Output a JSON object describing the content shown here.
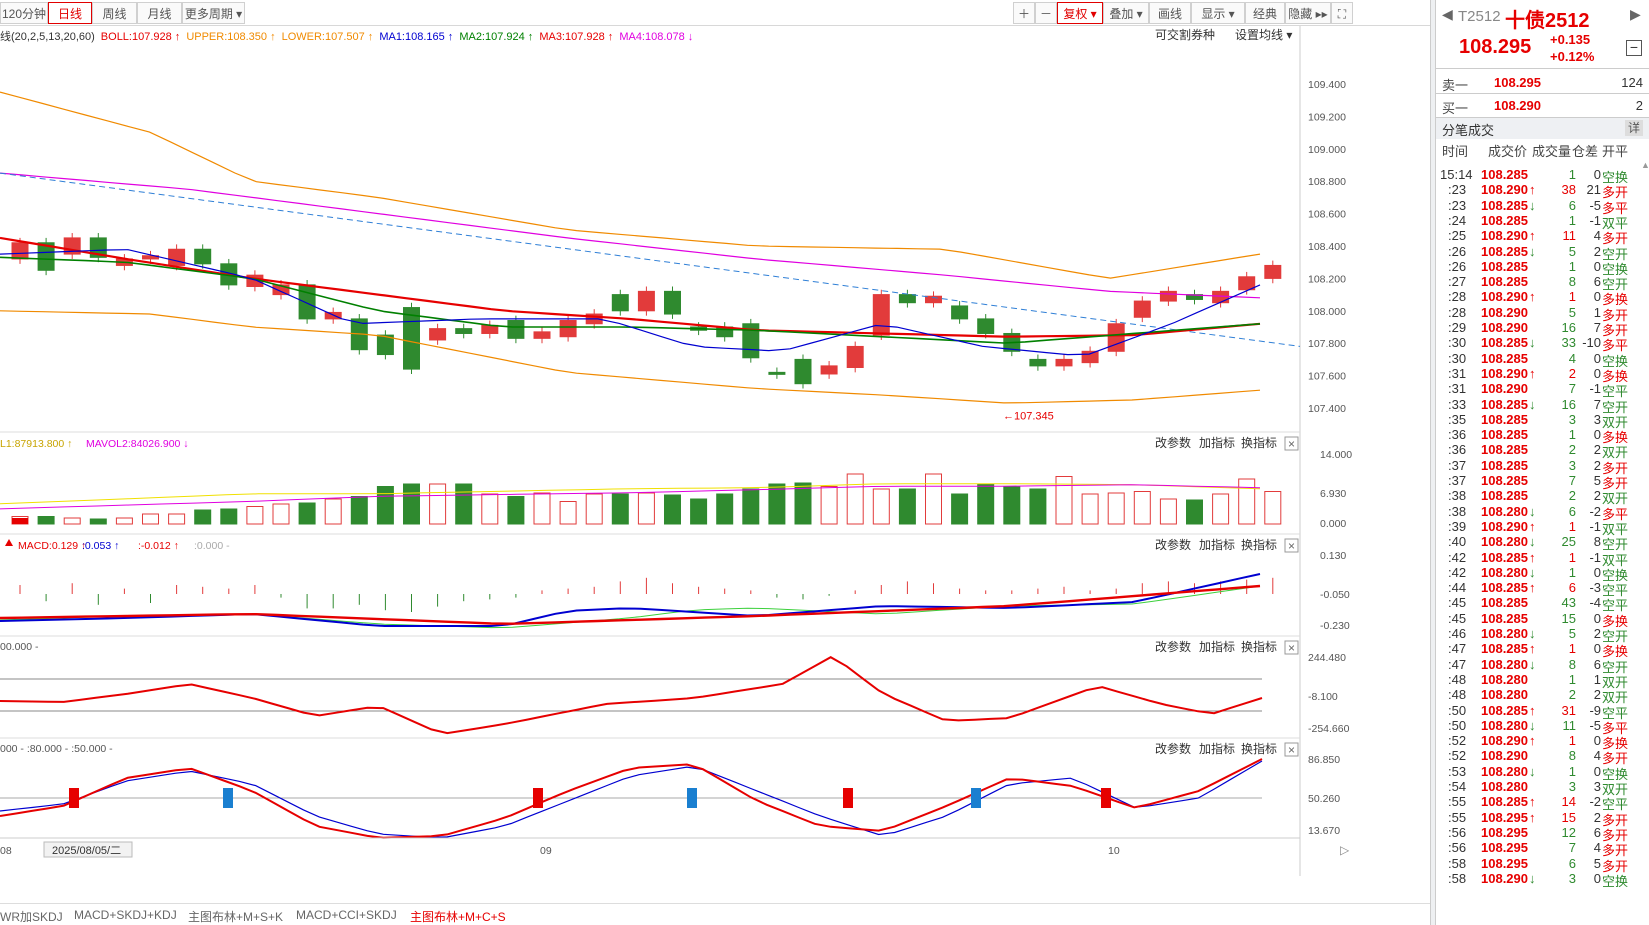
{
  "toolbar": {
    "left": [
      {
        "id": "p120",
        "label": "120分钟"
      },
      {
        "id": "day",
        "label": "日线"
      },
      {
        "id": "week",
        "label": "周线"
      },
      {
        "id": "month",
        "label": "月线"
      },
      {
        "id": "more",
        "label": "更多周期 ▾"
      }
    ],
    "right": [
      "＋",
      "－",
      "复权 ▾",
      "叠加 ▾",
      "画线",
      "显示 ▾",
      "经典",
      "隐藏 ▸▸",
      "⛶"
    ]
  },
  "legend": {
    "prefix": "线(20,2,5,13,20,60)",
    "items": [
      {
        "text": "BOLL:107.928",
        "arrow": "↑",
        "color": "#e60000"
      },
      {
        "text": "UPPER:108.350",
        "arrow": "↑",
        "color": "#f08a00"
      },
      {
        "text": "LOWER:107.507",
        "arrow": "↑",
        "color": "#f08a00"
      },
      {
        "text": "MA1:108.165",
        "arrow": "↑",
        "color": "#0000d0"
      },
      {
        "text": "MA2:107.924",
        "arrow": "↑",
        "color": "#008000"
      },
      {
        "text": "MA3:107.928",
        "arrow": "↑",
        "color": "#e60000"
      },
      {
        "text": "MA4:108.078",
        "arrow": "↓",
        "color": "#e000e0"
      }
    ],
    "link1": "可交割券种",
    "link2": "设置均线 ▾"
  },
  "price_axis": [
    "109.400",
    "109.200",
    "109.000",
    "108.800",
    "108.600",
    "108.400",
    "108.200",
    "108.000",
    "107.800",
    "107.600",
    "107.400"
  ],
  "min_label": "←107.345",
  "vol": {
    "legend1": "L1:87913.800",
    "legend1_arrow": "↑",
    "legend2": "MAVOL2:84026.900",
    "legend2_arrow": "↓",
    "axis": [
      "14.000",
      "6.930",
      "0.000"
    ]
  },
  "macd": {
    "legend": [
      {
        "text": "MACD:0.129",
        "arrow": "↑",
        "color": "#e60000"
      },
      {
        "text": ":0.053",
        "arrow": "↑",
        "color": "#0000d0"
      },
      {
        "text": ":-0.012",
        "arrow": "↑",
        "color": "#e60000"
      },
      {
        "text": ":0.000 -",
        "arrow": "",
        "color": "#aaaaaa"
      }
    ],
    "axis": [
      "0.130",
      "-0.050",
      "-0.230"
    ]
  },
  "cci": {
    "legend": "00.000 -",
    "axis": [
      "244.480",
      "-8.100",
      "-254.660"
    ]
  },
  "kdj": {
    "legend": "000 - :80.000 - :50.000 -",
    "axis": [
      "86.850",
      "50.260",
      "13.670"
    ]
  },
  "panel_buttons": [
    "改参数",
    "加指标",
    "换指标"
  ],
  "date_labels": {
    "left": "08",
    "box": "2025/08/05/二",
    "m09": "09",
    "m10": "10"
  },
  "bottom_tabs": [
    {
      "label": "WR加SKDJ",
      "active": false
    },
    {
      "label": "MACD+SKDJ+KDJ",
      "active": false
    },
    {
      "label": "主图布林+M+S+K",
      "active": false
    },
    {
      "label": "MACD+CCI+SKDJ",
      "active": false
    },
    {
      "label": "主图布林+M+C+S",
      "active": true
    }
  ],
  "quote": {
    "code": "T2512",
    "name": "十债2512",
    "price": "108.295",
    "change": "+0.135",
    "pct": "+0.12%",
    "ask_label": "卖一",
    "ask_price": "108.295",
    "ask_vol": "124",
    "bid_label": "买一",
    "bid_price": "108.290",
    "bid_vol": "2",
    "ticks_title": "分笔成交",
    "detail": "详",
    "headers": [
      "时间",
      "成交价",
      "成交量",
      "仓差",
      "开平"
    ]
  },
  "ticks": [
    [
      "15:14",
      "108.285",
      "",
      "1",
      "0",
      "空换"
    ],
    [
      "23",
      "108.290",
      "↑",
      "38",
      "21",
      "多开"
    ],
    [
      "23",
      "108.285",
      "↓",
      "6",
      "-5",
      "多平"
    ],
    [
      "24",
      "108.285",
      "",
      "1",
      "-1",
      "双平"
    ],
    [
      "25",
      "108.290",
      "↑",
      "11",
      "4",
      "多开"
    ],
    [
      "26",
      "108.285",
      "↓",
      "5",
      "2",
      "空开"
    ],
    [
      "26",
      "108.285",
      "",
      "1",
      "0",
      "空换"
    ],
    [
      "27",
      "108.285",
      "",
      "8",
      "6",
      "空开"
    ],
    [
      "28",
      "108.290",
      "↑",
      "1",
      "0",
      "多换"
    ],
    [
      "28",
      "108.290",
      "",
      "5",
      "1",
      "多开"
    ],
    [
      "29",
      "108.290",
      "",
      "16",
      "7",
      "多开"
    ],
    [
      "30",
      "108.285",
      "↓",
      "33",
      "-10",
      "多平"
    ],
    [
      "30",
      "108.285",
      "",
      "4",
      "0",
      "空换"
    ],
    [
      "31",
      "108.290",
      "↑",
      "2",
      "0",
      "多换"
    ],
    [
      "31",
      "108.290",
      "",
      "7",
      "-1",
      "空平"
    ],
    [
      "33",
      "108.285",
      "↓",
      "16",
      "7",
      "空开"
    ],
    [
      "35",
      "108.285",
      "",
      "3",
      "3",
      "双开"
    ],
    [
      "36",
      "108.285",
      "",
      "1",
      "0",
      "多换"
    ],
    [
      "36",
      "108.285",
      "",
      "2",
      "2",
      "双开"
    ],
    [
      "37",
      "108.285",
      "",
      "3",
      "2",
      "多开"
    ],
    [
      "37",
      "108.285",
      "",
      "7",
      "5",
      "多开"
    ],
    [
      "38",
      "108.285",
      "",
      "2",
      "2",
      "双开"
    ],
    [
      "38",
      "108.280",
      "↓",
      "6",
      "-2",
      "多平"
    ],
    [
      "39",
      "108.290",
      "↑",
      "1",
      "-1",
      "双平"
    ],
    [
      "40",
      "108.280",
      "↓",
      "25",
      "8",
      "空开"
    ],
    [
      "42",
      "108.285",
      "↑",
      "1",
      "-1",
      "双平"
    ],
    [
      "42",
      "108.280",
      "↓",
      "1",
      "0",
      "空换"
    ],
    [
      "44",
      "108.285",
      "↑",
      "6",
      "-3",
      "空平"
    ],
    [
      "45",
      "108.285",
      "",
      "43",
      "-4",
      "空平"
    ],
    [
      "45",
      "108.285",
      "",
      "15",
      "0",
      "多换"
    ],
    [
      "46",
      "108.280",
      "↓",
      "5",
      "2",
      "空开"
    ],
    [
      "47",
      "108.285",
      "↑",
      "1",
      "0",
      "多换"
    ],
    [
      "47",
      "108.280",
      "↓",
      "8",
      "6",
      "空开"
    ],
    [
      "48",
      "108.280",
      "",
      "1",
      "1",
      "双开"
    ],
    [
      "48",
      "108.280",
      "",
      "2",
      "2",
      "双开"
    ],
    [
      "50",
      "108.285",
      "↑",
      "31",
      "-9",
      "空平"
    ],
    [
      "50",
      "108.280",
      "↓",
      "11",
      "-5",
      "多平"
    ],
    [
      "52",
      "108.290",
      "↑",
      "1",
      "0",
      "多换"
    ],
    [
      "52",
      "108.290",
      "",
      "8",
      "4",
      "多开"
    ],
    [
      "53",
      "108.280",
      "↓",
      "1",
      "0",
      "空换"
    ],
    [
      "54",
      "108.280",
      "",
      "3",
      "3",
      "双开"
    ],
    [
      "55",
      "108.285",
      "↑",
      "14",
      "-2",
      "空平"
    ],
    [
      "55",
      "108.295",
      "↑",
      "15",
      "2",
      "多开"
    ],
    [
      "56",
      "108.295",
      "",
      "12",
      "6",
      "多开"
    ],
    [
      "56",
      "108.295",
      "",
      "7",
      "4",
      "多开"
    ],
    [
      "58",
      "108.295",
      "",
      "6",
      "5",
      "多开"
    ],
    [
      "58",
      "108.290",
      "↓",
      "3",
      "0",
      "空换"
    ]
  ]
}
